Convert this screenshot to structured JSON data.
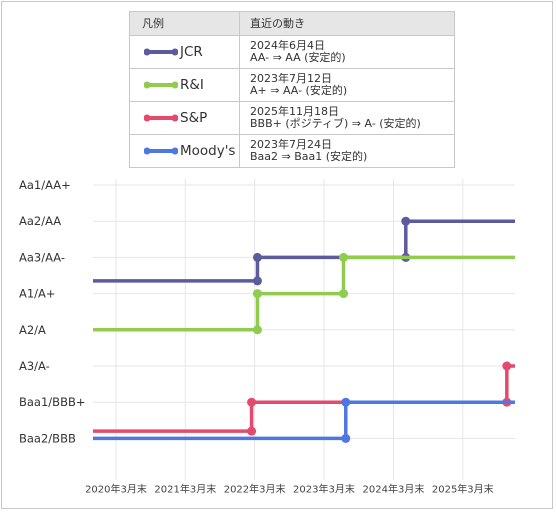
{
  "legend": {
    "header_name": "凡例",
    "header_desc": "直近の動き",
    "entries": [
      {
        "name": "JCR",
        "date": "2024年6月4日",
        "change": "AA- ⇒ AA (安定的)"
      },
      {
        "name": "R&I",
        "date": "2023年7月12日",
        "change": "A+ ⇒ AA- (安定的)"
      },
      {
        "name": "S&P",
        "date": "2025年11月18日",
        "change": "BBB+ (ポジティブ) ⇒ A- (安定的)"
      },
      {
        "name": "Moody's",
        "date": "2023年7月24日",
        "change": "Baa2 ⇒ Baa1 (安定的)"
      }
    ]
  },
  "chart_data": {
    "type": "line",
    "step": true,
    "y_levels": [
      "Baa2/BBB",
      "Baa1/BBB+",
      "A3/A-",
      "A2/A",
      "A1/A+",
      "Aa3/AA-",
      "Aa2/AA",
      "Aa1/AA+"
    ],
    "x_ticks": [
      "2020年3月末",
      "2021年3月末",
      "2022年3月末",
      "2023年3月末",
      "2024年3月末",
      "2025年3月末"
    ],
    "x_range": [
      "2019-12-01",
      "2025-12-31"
    ],
    "grid": true,
    "series": [
      {
        "name": "JCR",
        "color": "#5b5b9d",
        "start": 4.35,
        "changes": [
          {
            "date": "2022-04-15",
            "level": 5
          },
          {
            "date": "2024-06-04",
            "level": 6
          }
        ]
      },
      {
        "name": "R&I",
        "color": "#8fcc4f",
        "start": 3,
        "changes": [
          {
            "date": "2022-04-15",
            "level": 4
          },
          {
            "date": "2023-07-12",
            "level": 5
          }
        ]
      },
      {
        "name": "S&P",
        "color": "#e24a6e",
        "start": 0.2,
        "changes": [
          {
            "date": "2022-03-15",
            "level": 1
          },
          {
            "date": "2025-11-18",
            "level": 2
          }
        ]
      },
      {
        "name": "Moody's",
        "color": "#4f77e0",
        "start": 0,
        "changes": [
          {
            "date": "2023-07-24",
            "level": 1
          }
        ]
      }
    ]
  }
}
